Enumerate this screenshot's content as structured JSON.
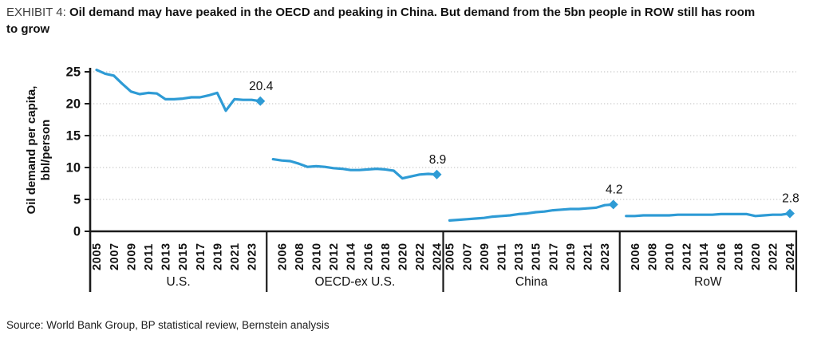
{
  "header": {
    "exhibit_label": "EXHIBIT 4:",
    "title": "Oil demand may have peaked in the OECD and peaking in China. But demand from the 5bn people in ROW still has room to grow"
  },
  "footer": {
    "source": "Source: World Bank Group, BP statistical review, Bernstein analysis"
  },
  "chart_data": {
    "type": "line",
    "ylabel_lines": [
      "Oil demand per capita,",
      "bbl/person"
    ],
    "ylim": [
      0,
      25
    ],
    "yticks": [
      0,
      5,
      10,
      15,
      20,
      25
    ],
    "grid": "horizontal-dotted",
    "legend": "none",
    "end_marker": "diamond",
    "line_color": "#2e9bd5",
    "axis_color": "#1a1a1a",
    "gridline_color": "#c9c9c9",
    "years_range": [
      2005,
      2024
    ],
    "panels": [
      {
        "label": "U.S.",
        "tick_labels": [
          "2005",
          "2007",
          "2009",
          "2011",
          "2013",
          "2015",
          "2017",
          "2019",
          "2021",
          "2023"
        ],
        "values": [
          25.3,
          24.7,
          24.4,
          23.1,
          21.9,
          21.5,
          21.7,
          21.6,
          20.7,
          20.7,
          20.8,
          21.0,
          21.0,
          21.3,
          21.7,
          18.9,
          20.7,
          20.6,
          20.6,
          20.4
        ],
        "end_label": "20.4"
      },
      {
        "label": "OECD-ex U.S.",
        "tick_labels": [
          "2006",
          "2008",
          "2010",
          "2012",
          "2014",
          "2016",
          "2018",
          "2020",
          "2022",
          "2024"
        ],
        "values": [
          11.3,
          11.1,
          11.0,
          10.6,
          10.1,
          10.2,
          10.1,
          9.9,
          9.8,
          9.6,
          9.6,
          9.7,
          9.8,
          9.7,
          9.5,
          8.3,
          8.6,
          8.9,
          9.0,
          8.9
        ],
        "end_label": "8.9"
      },
      {
        "label": "China",
        "tick_labels": [
          "2005",
          "2007",
          "2009",
          "2011",
          "2013",
          "2015",
          "2017",
          "2019",
          "2021",
          "2023"
        ],
        "values": [
          1.7,
          1.8,
          1.9,
          2.0,
          2.1,
          2.3,
          2.4,
          2.5,
          2.7,
          2.8,
          3.0,
          3.1,
          3.3,
          3.4,
          3.5,
          3.5,
          3.6,
          3.7,
          4.1,
          4.2
        ],
        "end_label": "4.2"
      },
      {
        "label": "RoW",
        "tick_labels": [
          "2006",
          "2008",
          "2010",
          "2012",
          "2014",
          "2016",
          "2018",
          "2020",
          "2022",
          "2024"
        ],
        "values": [
          2.4,
          2.4,
          2.5,
          2.5,
          2.5,
          2.5,
          2.6,
          2.6,
          2.6,
          2.6,
          2.6,
          2.7,
          2.7,
          2.7,
          2.7,
          2.4,
          2.5,
          2.6,
          2.6,
          2.8
        ],
        "end_label": "2.8"
      }
    ]
  }
}
